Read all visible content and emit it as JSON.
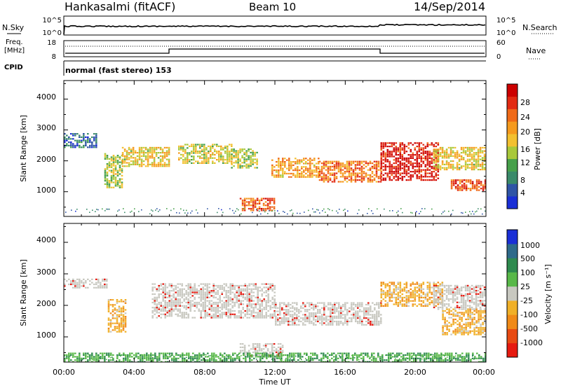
{
  "header": {
    "station": "Hankasalmi (fitACF)",
    "beam": "Beam 10",
    "date": "14/Sep/2014"
  },
  "nsky_panel": {
    "left_label": "N.Sky",
    "right_label": "N.Search",
    "left_ticks": [
      "10^5",
      "10^0"
    ],
    "right_ticks": [
      "10^5",
      "10^0"
    ]
  },
  "freq_panel": {
    "left_label_1": "Freq.",
    "left_label_2": "[MHz]",
    "left_ticks": [
      "18",
      "8"
    ],
    "right_label": "Nave",
    "right_ticks": [
      "60",
      "0"
    ],
    "cpid_label": "CPID",
    "mode_text": "normal (fast stereo) 153"
  },
  "x_axis": {
    "label": "Time UT",
    "ticks": [
      "00:00",
      "04:00",
      "08:00",
      "12:00",
      "16:00",
      "20:00",
      "00:00"
    ]
  },
  "power_panel": {
    "ylabel": "Slant Range [km]",
    "yticks": [
      "1000",
      "2000",
      "3000",
      "4000"
    ],
    "colorbar_label": "Power [dB]",
    "colorbar_ticks": [
      "4",
      "8",
      "12",
      "16",
      "20",
      "24",
      "28"
    ],
    "colors": [
      "#1a2fd6",
      "#2f55a6",
      "#3a8a6a",
      "#46a04a",
      "#a8c83a",
      "#f2c030",
      "#f59a1e",
      "#f06a18",
      "#e22a12",
      "#cc0000"
    ]
  },
  "velocity_panel": {
    "ylabel": "Slant Range [km]",
    "yticks": [
      "1000",
      "2000",
      "3000",
      "4000"
    ],
    "colorbar_label": "Velocity [m s⁻¹]",
    "colorbar_ticks": [
      "1000",
      "500",
      "100",
      "25",
      "-25",
      "-100",
      "-500",
      "-1000"
    ],
    "colors": [
      "#1a2fd6",
      "#2e6a8a",
      "#2e8a4e",
      "#58b848",
      "#c8c8c0",
      "#f0b028",
      "#f08a18",
      "#e84a12",
      "#e61a10"
    ]
  },
  "chart_data": {
    "type": "heatmap",
    "x_unit": "hours UT",
    "xlim": [
      0,
      24
    ],
    "y_unit": "km",
    "ylim": [
      200,
      4600
    ],
    "power_regions": [
      {
        "t0": 0.0,
        "t1": 1.8,
        "r0": 2450,
        "r1": 2900,
        "level": 0.15
      },
      {
        "t0": 2.3,
        "t1": 3.3,
        "r0": 1150,
        "r1": 2250,
        "level": 0.45
      },
      {
        "t0": 3.3,
        "t1": 6.0,
        "r0": 1850,
        "r1": 2450,
        "level": 0.55
      },
      {
        "t0": 6.5,
        "t1": 9.5,
        "r0": 1900,
        "r1": 2550,
        "level": 0.5
      },
      {
        "t0": 9.5,
        "t1": 11.0,
        "r0": 1750,
        "r1": 2400,
        "level": 0.45
      },
      {
        "t0": 10.0,
        "t1": 12.0,
        "r0": 400,
        "r1": 800,
        "level": 0.8
      },
      {
        "t0": 11.8,
        "t1": 14.5,
        "r0": 1450,
        "r1": 2100,
        "level": 0.65
      },
      {
        "t0": 14.5,
        "t1": 18.0,
        "r0": 1300,
        "r1": 2000,
        "level": 0.75
      },
      {
        "t0": 18.0,
        "t1": 21.3,
        "r0": 1400,
        "r1": 2600,
        "level": 0.95
      },
      {
        "t0": 21.0,
        "t1": 24.0,
        "r0": 1700,
        "r1": 2450,
        "level": 0.55
      },
      {
        "t0": 22.0,
        "t1": 24.0,
        "r0": 1050,
        "r1": 1400,
        "level": 0.85
      }
    ],
    "velocity_regions": [
      {
        "t0": 0.0,
        "t1": 2.5,
        "r0": 2550,
        "r1": 2850,
        "value": 0
      },
      {
        "t0": 2.5,
        "t1": 3.5,
        "r0": 1150,
        "r1": 2200,
        "value": -150
      },
      {
        "t0": 5.0,
        "t1": 12.0,
        "r0": 1600,
        "r1": 2700,
        "value": 0
      },
      {
        "t0": 10.0,
        "t1": 12.5,
        "r0": 400,
        "r1": 800,
        "value": 0
      },
      {
        "t0": 12.0,
        "t1": 18.0,
        "r0": 1400,
        "r1": 2100,
        "value": 0
      },
      {
        "t0": 18.0,
        "t1": 21.5,
        "r0": 2000,
        "r1": 2750,
        "value": -250
      },
      {
        "t0": 21.0,
        "t1": 24.0,
        "r0": 1900,
        "r1": 2650,
        "value": 0
      },
      {
        "t0": 21.5,
        "t1": 24.0,
        "r0": 1050,
        "r1": 1900,
        "value": -150
      },
      {
        "t0": 0.0,
        "t1": 24.0,
        "r0": 200,
        "r1": 500,
        "value": 50
      }
    ]
  }
}
